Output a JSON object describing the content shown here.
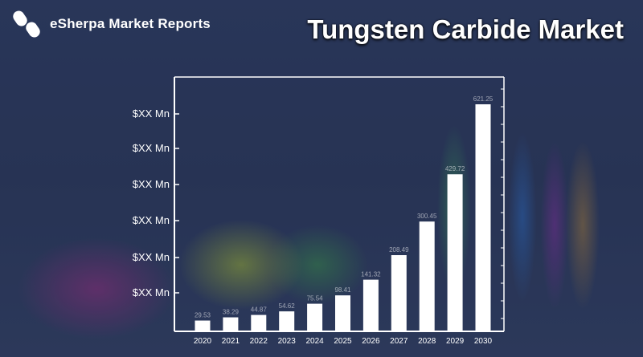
{
  "brand": {
    "name": "eSherpa Market Reports",
    "logo_icon": "esherpa-s-logo-icon"
  },
  "title": "Tungsten Carbide Market",
  "colors": {
    "bar": "#ffffff",
    "axis": "#ffffff",
    "background": "#27324f"
  },
  "chart_data": {
    "type": "bar",
    "categories": [
      "2020",
      "2021",
      "2022",
      "2023",
      "2024",
      "2025",
      "2026",
      "2027",
      "2028",
      "2029",
      "2030"
    ],
    "values": [
      29.53,
      38.29,
      44.87,
      54.62,
      75.54,
      98.41,
      141.32,
      208.49,
      300.45,
      429.72,
      621.25
    ],
    "data_labels": [
      "29.53",
      "38.29",
      "44.87",
      "54.62",
      "75.54",
      "98.41",
      "141.32",
      "208.49",
      "300.45",
      "429.72",
      "621.25"
    ],
    "y_tick_labels": [
      "$XX Mn",
      "$XX Mn",
      "$XX Mn",
      "$XX Mn",
      "$XX Mn",
      "$XX Mn"
    ],
    "ylim": [
      0,
      700
    ],
    "grid": false
  }
}
